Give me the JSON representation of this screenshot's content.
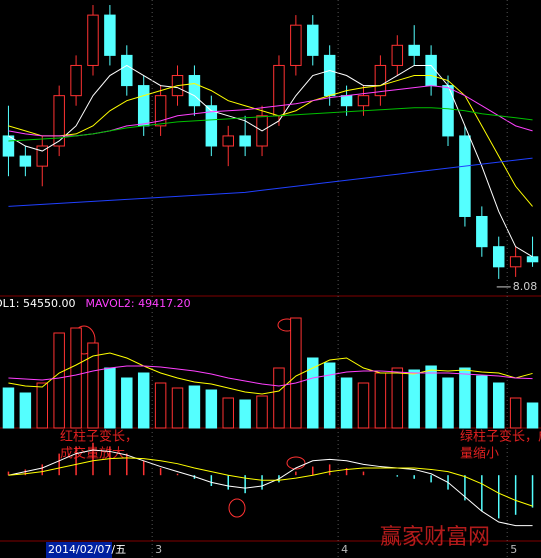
{
  "chart_data": [
    {
      "type": "candlestick",
      "categories": [
        null,
        null,
        null,
        null,
        null,
        null,
        null,
        null,
        null,
        "3",
        null,
        null,
        null,
        null,
        null,
        null,
        null,
        null,
        null,
        null,
        "4",
        null,
        null,
        null,
        null,
        null,
        null,
        null,
        null,
        null,
        "5",
        null
      ],
      "cursor_label": "2014/02/07/五",
      "open": [
        9.5,
        9.3,
        9.2,
        9.4,
        9.9,
        10.2,
        10.7,
        10.3,
        10.0,
        9.6,
        9.9,
        10.1,
        9.8,
        9.4,
        9.5,
        9.4,
        9.7,
        10.2,
        10.6,
        10.3,
        9.9,
        9.8,
        9.9,
        10.2,
        10.4,
        10.3,
        10.0,
        9.5,
        8.7,
        8.4,
        8.2,
        8.3
      ],
      "high": [
        9.8,
        9.4,
        9.5,
        10.0,
        10.3,
        10.8,
        10.8,
        10.4,
        10.1,
        10.0,
        10.2,
        10.2,
        9.9,
        9.6,
        9.7,
        9.8,
        10.3,
        10.7,
        10.7,
        10.4,
        10.0,
        10.0,
        10.3,
        10.5,
        10.6,
        10.4,
        10.1,
        9.6,
        8.8,
        8.5,
        8.4,
        8.5
      ],
      "low": [
        9.1,
        9.1,
        9.0,
        9.3,
        9.8,
        10.1,
        10.2,
        9.9,
        9.5,
        9.5,
        9.8,
        9.7,
        9.3,
        9.2,
        9.3,
        9.3,
        9.6,
        10.1,
        10.2,
        9.8,
        9.7,
        9.7,
        9.8,
        10.1,
        10.2,
        9.9,
        9.4,
        8.6,
        8.3,
        8.08,
        8.1,
        8.2
      ],
      "close": [
        9.3,
        9.2,
        9.4,
        9.9,
        10.2,
        10.7,
        10.3,
        10.0,
        9.6,
        9.9,
        10.1,
        9.8,
        9.4,
        9.5,
        9.4,
        9.7,
        10.2,
        10.6,
        10.3,
        9.9,
        9.8,
        9.9,
        10.2,
        10.4,
        10.3,
        10.0,
        9.5,
        8.7,
        8.4,
        8.2,
        8.3,
        8.25
      ],
      "up_color": "#ff3232",
      "down_color": "#54ffff",
      "ylim": [
        7.95,
        10.85
      ],
      "lines": [
        {
          "color": "#ffffff",
          "values": [
            9.5,
            9.4,
            9.35,
            9.45,
            9.6,
            9.9,
            10.1,
            10.2,
            10.1,
            10.0,
            9.98,
            9.9,
            9.75,
            9.7,
            9.65,
            9.55,
            9.65,
            9.9,
            10.1,
            10.15,
            10.1,
            10.0,
            10.0,
            10.1,
            10.2,
            10.2,
            10.0,
            9.6,
            9.2,
            8.75,
            8.4,
            8.3
          ]
        },
        {
          "color": "#ffff00",
          "values": [
            9.6,
            9.55,
            9.5,
            9.5,
            9.52,
            9.6,
            9.75,
            9.85,
            9.9,
            9.95,
            10.0,
            10.02,
            9.95,
            9.85,
            9.8,
            9.75,
            9.7,
            9.75,
            9.85,
            9.9,
            9.95,
            9.98,
            10.0,
            10.05,
            10.1,
            10.1,
            10.05,
            9.9,
            9.6,
            9.3,
            9.0,
            8.8
          ]
        },
        {
          "color": "#ff40ff",
          "values": [
            9.55,
            9.52,
            9.5,
            9.5,
            9.5,
            9.52,
            9.55,
            9.6,
            9.62,
            9.65,
            9.7,
            9.72,
            9.74,
            9.75,
            9.76,
            9.78,
            9.8,
            9.82,
            9.85,
            9.88,
            9.9,
            9.92,
            9.94,
            9.96,
            9.98,
            10.0,
            9.98,
            9.9,
            9.8,
            9.7,
            9.6,
            9.55
          ]
        },
        {
          "color": "#00c000",
          "values": [
            9.45,
            9.46,
            9.47,
            9.48,
            9.5,
            9.52,
            9.55,
            9.58,
            9.6,
            9.62,
            9.64,
            9.65,
            9.66,
            9.67,
            9.68,
            9.69,
            9.7,
            9.71,
            9.72,
            9.73,
            9.74,
            9.75,
            9.76,
            9.77,
            9.78,
            9.78,
            9.77,
            9.75,
            9.72,
            9.7,
            9.68,
            9.66
          ]
        },
        {
          "color": "#2040ff",
          "values": [
            8.8,
            8.81,
            8.82,
            8.83,
            8.84,
            8.85,
            8.86,
            8.87,
            8.88,
            8.89,
            8.9,
            8.91,
            8.92,
            8.93,
            8.94,
            8.96,
            8.98,
            9.0,
            9.02,
            9.04,
            9.06,
            9.08,
            9.1,
            9.12,
            9.14,
            9.16,
            9.18,
            9.2,
            9.22,
            9.24,
            9.26,
            9.28
          ]
        }
      ]
    },
    {
      "type": "volume",
      "legend": [
        {
          "text": "OL1: 54550.00",
          "color": "#ffffff"
        },
        {
          "text": "MAVOL2: 49417.20",
          "color": "#ff40ff"
        }
      ],
      "values": [
        40000,
        35000,
        45000,
        95000,
        100000,
        85000,
        60000,
        50000,
        55000,
        45000,
        40000,
        42000,
        38000,
        30000,
        28000,
        32000,
        60000,
        110000,
        70000,
        65000,
        50000,
        45000,
        55000,
        60000,
        58000,
        62000,
        50000,
        60000,
        52000,
        45000,
        30000,
        25000
      ],
      "ylim": [
        0,
        115000
      ],
      "lines": [
        {
          "color": "#ffff00",
          "values": [
            45000,
            42000,
            41000,
            55000,
            63000,
            72000,
            75000,
            70000,
            62000,
            55000,
            50000,
            46000,
            44000,
            40000,
            36000,
            34000,
            37000,
            52000,
            60000,
            68000,
            70000,
            60000,
            55000,
            55000,
            54000,
            58000,
            57000,
            58000,
            56000,
            55000,
            50000,
            54550
          ]
        },
        {
          "color": "#ff40ff",
          "values": [
            50000,
            49000,
            48000,
            50000,
            53000,
            57000,
            60000,
            62000,
            62000,
            61000,
            59000,
            57000,
            54000,
            50000,
            47000,
            44000,
            42000,
            45000,
            50000,
            53000,
            56000,
            57000,
            57000,
            56000,
            55000,
            55000,
            55000,
            54000,
            53000,
            52000,
            50000,
            49417.2
          ]
        }
      ],
      "annotations": [
        [
          "红柱子变长，",
          "成交量放大"
        ],
        [
          "绿柱子变长，成交",
          "量缩小"
        ]
      ]
    },
    {
      "type": "macd",
      "values": [
        0.05,
        0.08,
        0.15,
        0.3,
        0.4,
        0.45,
        0.4,
        0.3,
        0.2,
        0.1,
        0.02,
        -0.05,
        -0.15,
        -0.2,
        -0.25,
        -0.2,
        -0.1,
        0.05,
        0.12,
        0.15,
        0.1,
        0.05,
        0.0,
        -0.02,
        -0.05,
        -0.1,
        -0.2,
        -0.35,
        -0.5,
        -0.6,
        -0.55,
        -0.45
      ],
      "up_color": "#ff3232",
      "down_color": "#54ffff",
      "ylim": [
        -0.9,
        0.6
      ],
      "lines": [
        {
          "color": "#ffffff",
          "values": [
            0.0,
            0.05,
            0.1,
            0.2,
            0.3,
            0.35,
            0.33,
            0.28,
            0.2,
            0.12,
            0.05,
            -0.02,
            -0.1,
            -0.15,
            -0.18,
            -0.15,
            -0.05,
            0.1,
            0.2,
            0.22,
            0.2,
            0.15,
            0.12,
            0.1,
            0.08,
            0.02,
            -0.1,
            -0.3,
            -0.5,
            -0.65,
            -0.7,
            -0.7
          ]
        },
        {
          "color": "#ffff00",
          "values": [
            0.0,
            0.02,
            0.05,
            0.1,
            0.15,
            0.2,
            0.23,
            0.24,
            0.23,
            0.2,
            0.16,
            0.1,
            0.05,
            0.0,
            -0.04,
            -0.07,
            -0.07,
            -0.04,
            0.0,
            0.05,
            0.08,
            0.1,
            0.1,
            0.1,
            0.1,
            0.08,
            0.05,
            -0.02,
            -0.12,
            -0.25,
            -0.35,
            -0.43
          ]
        }
      ]
    },
    {
      "type": "watermark",
      "title": "赢家财富网"
    }
  ]
}
